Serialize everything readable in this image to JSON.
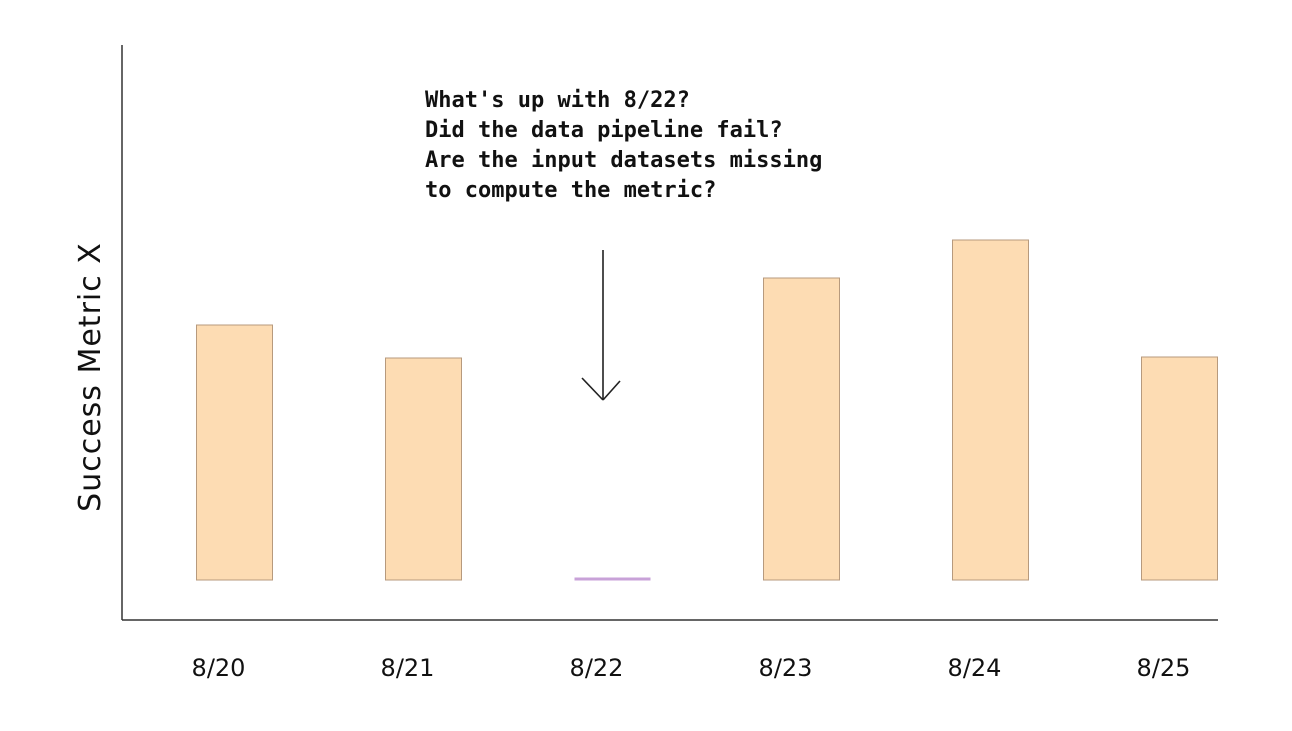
{
  "chart_data": {
    "type": "bar",
    "y_label": "Success Metric X",
    "annotation": [
      "What's up with 8/22?",
      "Did the data pipeline fail?",
      "Are the input datasets missing",
      "to compute the metric?"
    ],
    "categories": [
      "8/20",
      "8/21",
      "8/22",
      "8/23",
      "8/24",
      "8/25"
    ],
    "values": [
      255,
      222,
      0,
      302,
      340,
      223
    ],
    "color": "#fddcb3",
    "zero_color": "#c8a2d8",
    "ylim": [
      0,
      535
    ]
  }
}
